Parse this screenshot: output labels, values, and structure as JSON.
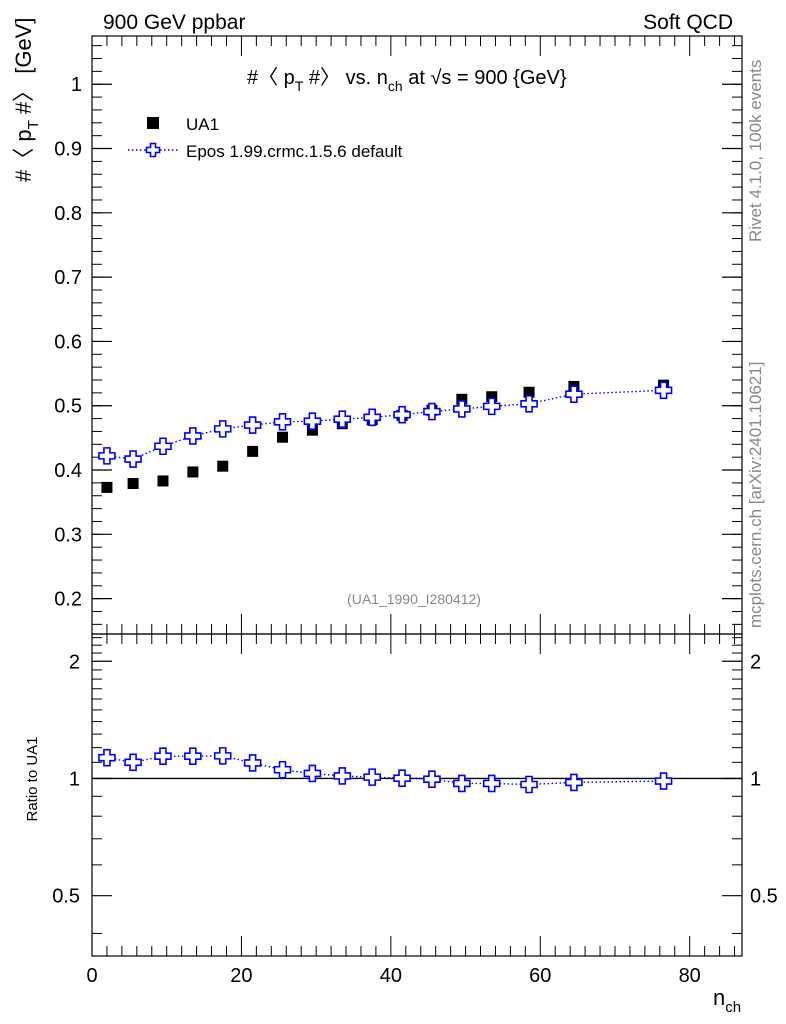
{
  "header": {
    "left": "900 GeV ppbar",
    "right": "Soft QCD"
  },
  "side_labels": {
    "rivet": "Rivet 4.1.0,  100k events",
    "mcplots": "mcplots.cern.ch [arXiv:2401.10621]"
  },
  "colors": {
    "data": "#000000",
    "mc": "#0000ff",
    "grey_text": "#888888"
  },
  "chart_data": [
    {
      "type": "scatter",
      "title_parts": {
        "t1": "#〈 p",
        "t1sub": "T",
        "t2": " #〉 vs. n",
        "t2sub": "ch",
        "t3": " at √s = 900 {GeV}"
      },
      "ylabel_parts": {
        "y1": "#〈 p",
        "y1sub": "T",
        "y2": " #〉 [GeV]"
      },
      "xlim": [
        0,
        87
      ],
      "ylim": [
        0.145,
        1.075
      ],
      "yticks_major": [
        0.2,
        0.3,
        0.4,
        0.5,
        0.6,
        0.7,
        0.8,
        0.9,
        1
      ],
      "ytick_labels": [
        "0.2",
        "0.3",
        "0.4",
        "0.5",
        "0.6",
        "0.7",
        "0.8",
        "0.9",
        "1"
      ],
      "yticks_minor_step": 0.02,
      "watermark": "(UA1_1990_I280412)",
      "legend": {
        "position": "top-left",
        "entries": [
          "UA1",
          "Epos 1.99.crmc.1.5.6 default"
        ]
      },
      "series": [
        {
          "name": "UA1",
          "marker": "square",
          "x": [
            2,
            5.5,
            9.5,
            13.5,
            17.5,
            21.5,
            25.5,
            29.5,
            33.5,
            37.5,
            41.5,
            45.5,
            49.5,
            53.5,
            58.5,
            64.5,
            76.5
          ],
          "y": [
            0.373,
            0.379,
            0.383,
            0.397,
            0.406,
            0.429,
            0.451,
            0.462,
            0.472,
            0.478,
            0.485,
            0.493,
            0.51,
            0.514,
            0.521,
            0.53,
            0.532
          ]
        },
        {
          "name": "Epos 1.99.crmc.1.5.6 default",
          "marker": "open-cross",
          "line": "dotted",
          "x": [
            2,
            5.5,
            9.5,
            13.5,
            17.5,
            21.5,
            25.5,
            29.5,
            33.5,
            37.5,
            41.5,
            45.5,
            49.5,
            53.5,
            58.5,
            64.5,
            76.5
          ],
          "y": [
            0.422,
            0.417,
            0.437,
            0.453,
            0.464,
            0.47,
            0.475,
            0.476,
            0.479,
            0.482,
            0.486,
            0.491,
            0.495,
            0.499,
            0.503,
            0.518,
            0.524
          ]
        }
      ]
    },
    {
      "type": "line",
      "ylabel": "Ratio to UA1",
      "xlabel_parts": {
        "x1": "n",
        "x1sub": "ch"
      },
      "xlim": [
        0,
        87
      ],
      "ylim": [
        0.35,
        2.35
      ],
      "xticks": [
        0,
        20,
        40,
        60,
        80
      ],
      "xtick_labels": [
        "0",
        "20",
        "40",
        "60",
        "80"
      ],
      "yticks": [
        0.5,
        1,
        2
      ],
      "ytick_labels": [
        "0.5",
        "1",
        "2"
      ],
      "reference_line": 1,
      "series": [
        {
          "name": "Epos 1.99.crmc.1.5.6 default / UA1",
          "x": [
            2,
            5.5,
            9.5,
            13.5,
            17.5,
            21.5,
            25.5,
            29.5,
            33.5,
            37.5,
            41.5,
            45.5,
            49.5,
            53.5,
            58.5,
            64.5,
            76.5
          ],
          "y": [
            1.131,
            1.1,
            1.141,
            1.141,
            1.143,
            1.096,
            1.053,
            1.03,
            1.015,
            1.008,
            1.002,
            0.996,
            0.971,
            0.971,
            0.965,
            0.977,
            0.985
          ]
        }
      ]
    }
  ]
}
